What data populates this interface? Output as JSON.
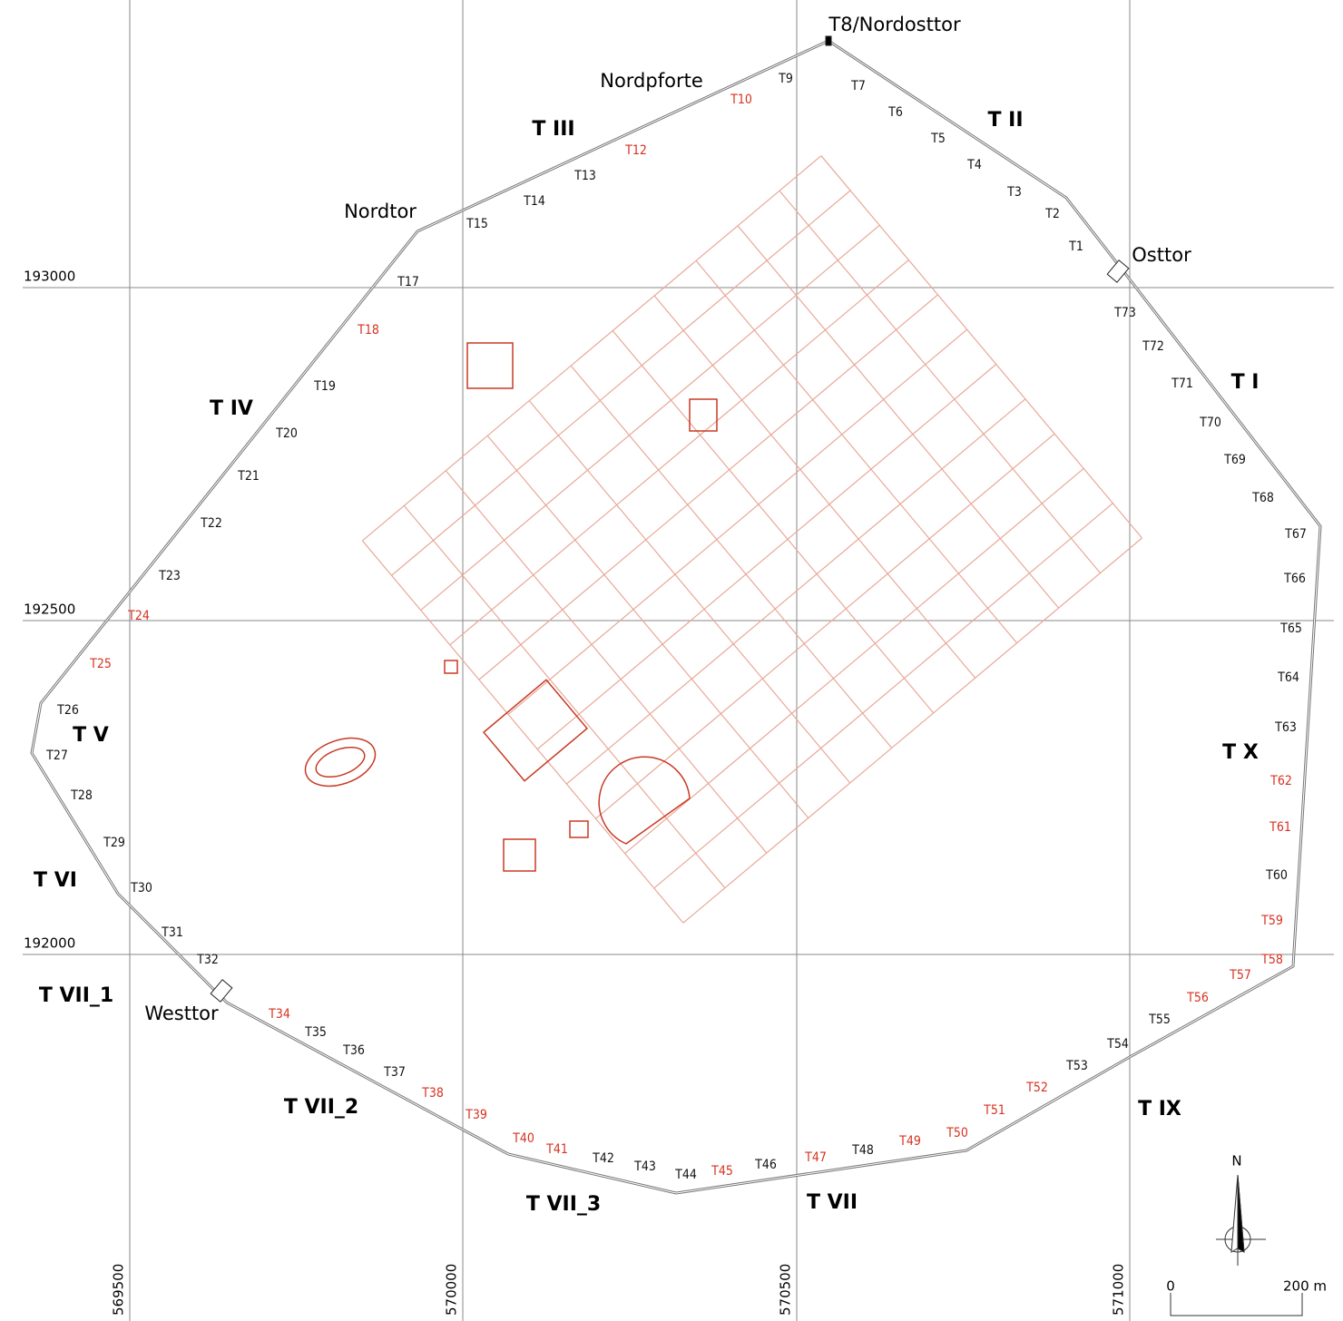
{
  "grid": {
    "x_labels": [
      "569500",
      "570000",
      "570500",
      "571000"
    ],
    "y_labels": [
      "193000",
      "192500",
      "192000"
    ]
  },
  "gates": [
    "T8/Nordosttor",
    "Nordpforte",
    "Nordtor",
    "Osttor",
    "Westtor"
  ],
  "sections": [
    "T I",
    "T II",
    "T III",
    "T IV",
    "T V",
    "T VI",
    "T VII_1",
    "T VII_2",
    "T VII_3",
    "T VII",
    "T IX",
    "T X"
  ],
  "towers": [
    {
      "label": "T1",
      "color": "black"
    },
    {
      "label": "T2",
      "color": "black"
    },
    {
      "label": "T3",
      "color": "black"
    },
    {
      "label": "T4",
      "color": "black"
    },
    {
      "label": "T5",
      "color": "black"
    },
    {
      "label": "T6",
      "color": "black"
    },
    {
      "label": "T7",
      "color": "black"
    },
    {
      "label": "T9",
      "color": "black"
    },
    {
      "label": "T10",
      "color": "red"
    },
    {
      "label": "T12",
      "color": "red"
    },
    {
      "label": "T13",
      "color": "black"
    },
    {
      "label": "T14",
      "color": "black"
    },
    {
      "label": "T15",
      "color": "black"
    },
    {
      "label": "T17",
      "color": "black"
    },
    {
      "label": "T18",
      "color": "red"
    },
    {
      "label": "T19",
      "color": "black"
    },
    {
      "label": "T20",
      "color": "black"
    },
    {
      "label": "T21",
      "color": "black"
    },
    {
      "label": "T22",
      "color": "black"
    },
    {
      "label": "T23",
      "color": "black"
    },
    {
      "label": "T24",
      "color": "red"
    },
    {
      "label": "T25",
      "color": "red"
    },
    {
      "label": "T26",
      "color": "black"
    },
    {
      "label": "T27",
      "color": "black"
    },
    {
      "label": "T28",
      "color": "black"
    },
    {
      "label": "T29",
      "color": "black"
    },
    {
      "label": "T30",
      "color": "black"
    },
    {
      "label": "T31",
      "color": "black"
    },
    {
      "label": "T32",
      "color": "black"
    },
    {
      "label": "T34",
      "color": "red"
    },
    {
      "label": "T35",
      "color": "black"
    },
    {
      "label": "T36",
      "color": "black"
    },
    {
      "label": "T37",
      "color": "black"
    },
    {
      "label": "T38",
      "color": "red"
    },
    {
      "label": "T39",
      "color": "red"
    },
    {
      "label": "T40",
      "color": "red"
    },
    {
      "label": "T41",
      "color": "red"
    },
    {
      "label": "T42",
      "color": "black"
    },
    {
      "label": "T43",
      "color": "black"
    },
    {
      "label": "T44",
      "color": "black"
    },
    {
      "label": "T45",
      "color": "red"
    },
    {
      "label": "T46",
      "color": "black"
    },
    {
      "label": "T47",
      "color": "red"
    },
    {
      "label": "T48",
      "color": "black"
    },
    {
      "label": "T49",
      "color": "red"
    },
    {
      "label": "T50",
      "color": "red"
    },
    {
      "label": "T51",
      "color": "red"
    },
    {
      "label": "T52",
      "color": "red"
    },
    {
      "label": "T53",
      "color": "black"
    },
    {
      "label": "T54",
      "color": "black"
    },
    {
      "label": "T55",
      "color": "black"
    },
    {
      "label": "T56",
      "color": "red"
    },
    {
      "label": "T57",
      "color": "red"
    },
    {
      "label": "T58",
      "color": "red"
    },
    {
      "label": "T59",
      "color": "red"
    },
    {
      "label": "T60",
      "color": "black"
    },
    {
      "label": "T61",
      "color": "red"
    },
    {
      "label": "T62",
      "color": "red"
    },
    {
      "label": "T63",
      "color": "black"
    },
    {
      "label": "T64",
      "color": "black"
    },
    {
      "label": "T65",
      "color": "black"
    },
    {
      "label": "T66",
      "color": "black"
    },
    {
      "label": "T67",
      "color": "black"
    },
    {
      "label": "T68",
      "color": "black"
    },
    {
      "label": "T69",
      "color": "black"
    },
    {
      "label": "T70",
      "color": "black"
    },
    {
      "label": "T71",
      "color": "black"
    },
    {
      "label": "T72",
      "color": "black"
    },
    {
      "label": "T73",
      "color": "black"
    }
  ],
  "scale": {
    "north": "N",
    "start": "0",
    "end": "200 m"
  }
}
